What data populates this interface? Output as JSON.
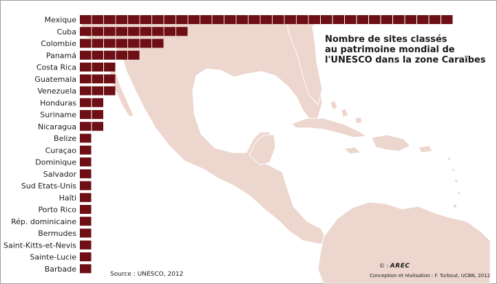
{
  "title_lines": [
    "Nombre de sites classés",
    "au patrimoine mondial de",
    "l'UNESCO dans la zone Caraïbes"
  ],
  "source": "Source : UNESCO, 2012",
  "credit_logo_prefix": "© :",
  "credit_logo_mark": "AREC",
  "credit": "Conception et réalisation : F. Turbout, UCBN, 2012",
  "colors": {
    "bar": "#6d0f14",
    "bar_divider": "#ffffff",
    "land": "#ecd6cd",
    "land_border": "#ffffff",
    "text": "#1a1a1a"
  },
  "chart_data": {
    "type": "bar",
    "orientation": "horizontal",
    "unit_style": "one block per site",
    "title": "Nombre de sites classés au patrimoine mondial de l'UNESCO dans la zone Caraïbes",
    "categories": [
      "Mexique",
      "Cuba",
      "Colombie",
      "Panamá",
      "Costa Rica",
      "Guatemala",
      "Venezuela",
      "Honduras",
      "Suriname",
      "Nicaragua",
      "Belize",
      "Curaçao",
      "Dominique",
      "Salvador",
      "Sud Etats-Unis",
      "Haïti",
      "Porto Rico",
      "Rép. dominicaine",
      "Bermudes",
      "Saint-Kitts-et-Nevis",
      "Sainte-Lucie",
      "Barbade"
    ],
    "values": [
      31,
      9,
      7,
      5,
      3,
      3,
      3,
      2,
      2,
      2,
      1,
      1,
      1,
      1,
      1,
      1,
      1,
      1,
      1,
      1,
      1,
      1
    ],
    "grid": false,
    "axes": false,
    "source": "Source : UNESCO, 2012"
  }
}
